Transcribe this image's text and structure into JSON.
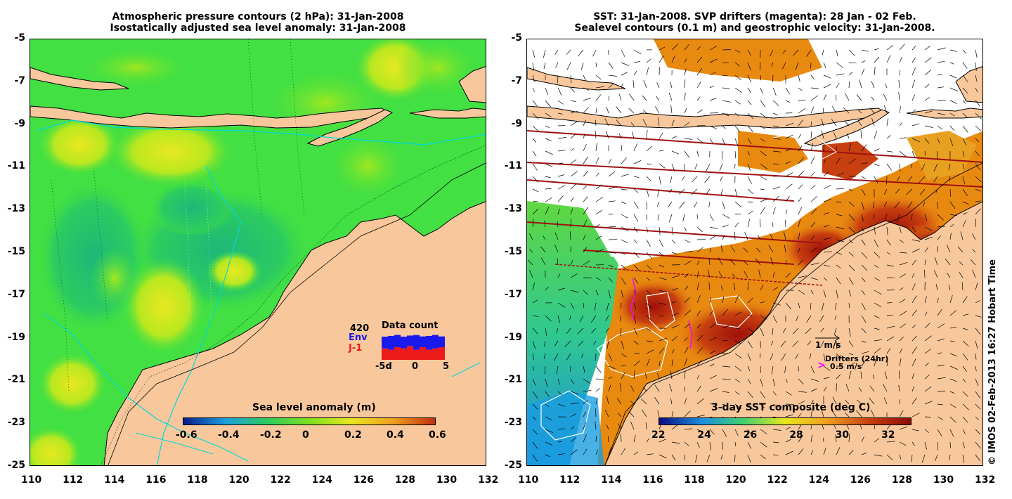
{
  "left_panel": {
    "title_line1": "Atmospheric pressure contours (2 hPa): 31-Jan-2008",
    "title_line2": "Isostatically adjusted sea level anomaly: 31-Jan-2008",
    "colorbar": {
      "title": "Sea level anomaly (m)",
      "ticks": [
        "-0.6",
        "-0.4",
        "-0.2",
        "0",
        "0.2",
        "0.4",
        "0.6"
      ],
      "colors": [
        "#0a1a8c",
        "#1aa0e0",
        "#2ecc60",
        "#7ee020",
        "#e8e820",
        "#f0a020",
        "#c03010"
      ]
    },
    "data_count": {
      "total": "420",
      "env_label": "Env",
      "j1_label": "J-1",
      "title": "Data count",
      "x_ticks": [
        "-5d",
        "0",
        "5"
      ],
      "env_color": "#1a1aee",
      "j1_color": "#ee1a1a",
      "env_values": [
        0.55,
        0.6,
        0.5,
        0.55,
        0.45,
        0.6,
        0.5,
        0.6,
        0.55,
        0.5
      ],
      "j1_values": [
        0.45,
        0.4,
        0.5,
        0.45,
        0.55,
        0.4,
        0.5,
        0.4,
        0.45,
        0.5
      ]
    }
  },
  "right_panel": {
    "title_line1": "SST: 31-Jan-2008. SVP drifters (magenta): 28 Jan - 02 Feb.",
    "title_line2": "Sealevel contours (0.1 m) and geostrophic velocity: 31-Jan-2008.",
    "colorbar": {
      "title": "3-day SST composite (deg C)",
      "ticks": [
        "22",
        "24",
        "26",
        "28",
        "30",
        "32"
      ],
      "colors": [
        "#0a0a80",
        "#1a8ee0",
        "#40d070",
        "#e8e820",
        "#f0a020",
        "#c84010",
        "#8c0a0a"
      ]
    },
    "velocity_legend": "1 m/s",
    "drifters_legend": "Drifters (24hr)",
    "drifters_speed": "0.5 m/s",
    "drifters_color": "#ff00ff"
  },
  "axes": {
    "x_ticks": [
      "110",
      "112",
      "114",
      "116",
      "118",
      "120",
      "122",
      "124",
      "126",
      "128",
      "130",
      "132"
    ],
    "y_ticks": [
      "-5",
      "-7",
      "-9",
      "-11",
      "-13",
      "-15",
      "-17",
      "-19",
      "-21",
      "-23",
      "-25"
    ],
    "x_range": [
      110,
      132
    ],
    "y_range": [
      -25,
      -5
    ]
  },
  "copyright": "© IMOS 02-Feb-2013 16:27 Hobart Time",
  "colors": {
    "land": "#f8c89c",
    "sea_green": "#40e040",
    "ocean_warm": "#e88a10"
  }
}
